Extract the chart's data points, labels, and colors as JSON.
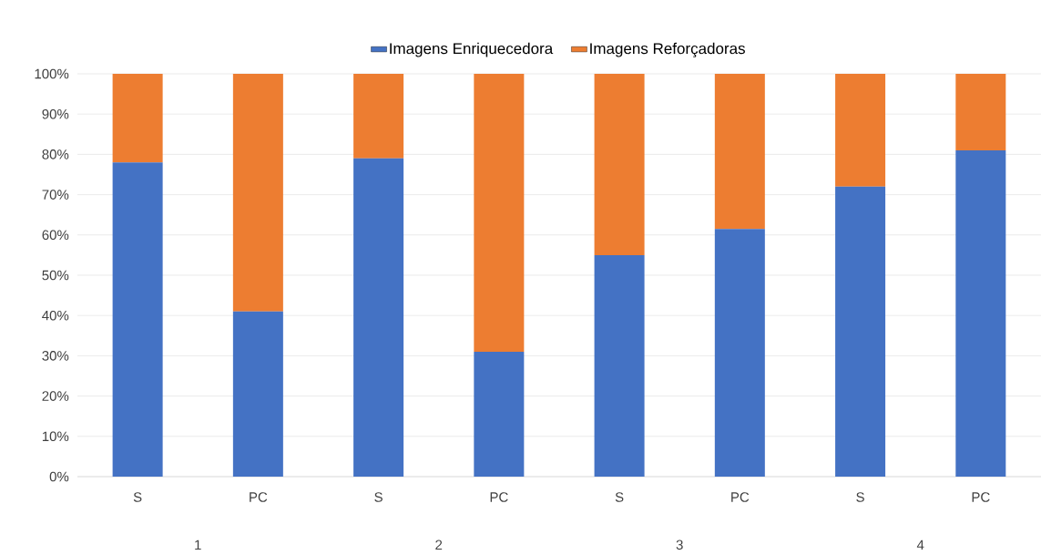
{
  "chart_data": {
    "type": "bar",
    "stacked": true,
    "categories": [
      "S",
      "PC",
      "S",
      "PC",
      "S",
      "PC",
      "S",
      "PC"
    ],
    "series": [
      {
        "name": "Imagens Enriquecedora",
        "color": "#4472c4",
        "values": [
          78,
          41,
          79,
          31,
          55,
          61.5,
          72,
          81
        ]
      },
      {
        "name": "Imagens Reforçadoras",
        "color": "#ed7d31",
        "values": [
          22,
          59,
          21,
          69,
          45,
          38.5,
          28,
          19
        ]
      }
    ],
    "ylim": [
      0,
      100
    ],
    "yticks": [
      {
        "value": 0,
        "label": "0%"
      },
      {
        "value": 10,
        "label": "10%"
      },
      {
        "value": 20,
        "label": "20%"
      },
      {
        "value": 30,
        "label": "30%"
      },
      {
        "value": 40,
        "label": "40%"
      },
      {
        "value": 50,
        "label": "50%"
      },
      {
        "value": 60,
        "label": "60%"
      },
      {
        "value": 70,
        "label": "70%"
      },
      {
        "value": 80,
        "label": "80%"
      },
      {
        "value": 90,
        "label": "90%"
      },
      {
        "value": 100,
        "label": "100%"
      }
    ],
    "annotations": [
      "1",
      "2",
      "3",
      "4"
    ],
    "grid": "y",
    "legend": "top"
  }
}
